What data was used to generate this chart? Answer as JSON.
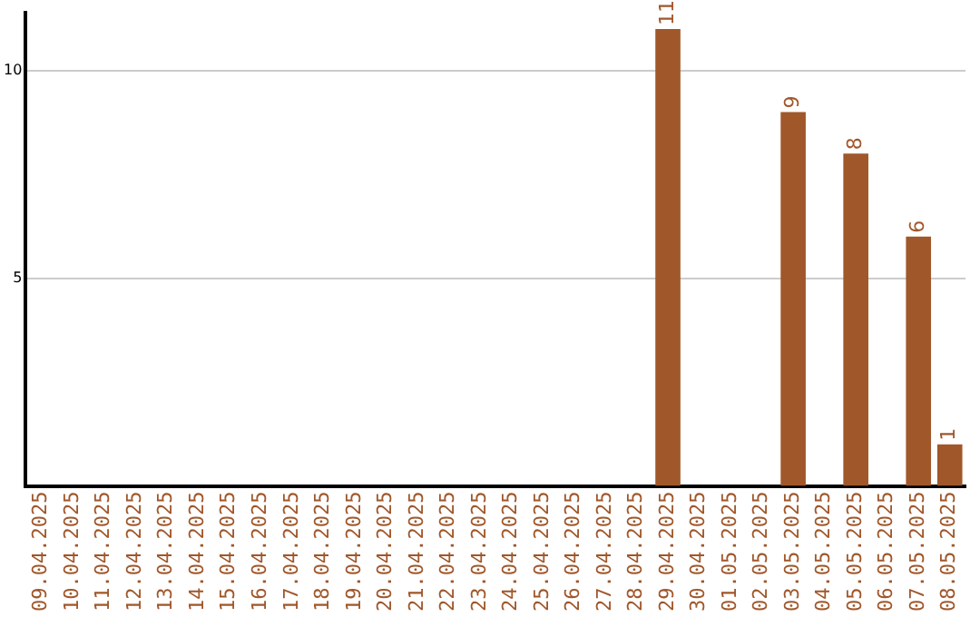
{
  "chart_data": {
    "type": "bar",
    "categories": [
      "09.04.2025",
      "10.04.2025",
      "11.04.2025",
      "12.04.2025",
      "13.04.2025",
      "14.04.2025",
      "15.04.2025",
      "16.04.2025",
      "17.04.2025",
      "18.04.2025",
      "19.04.2025",
      "20.04.2025",
      "21.04.2025",
      "22.04.2025",
      "23.04.2025",
      "24.04.2025",
      "25.04.2025",
      "26.04.2025",
      "27.04.2025",
      "28.04.2025",
      "29.04.2025",
      "30.04.2025",
      "01.05.2025",
      "02.05.2025",
      "03.05.2025",
      "04.05.2025",
      "05.05.2025",
      "06.05.2025",
      "07.05.2025",
      "08.05.2025"
    ],
    "values": [
      0,
      0,
      0,
      0,
      0,
      0,
      0,
      0,
      0,
      0,
      0,
      0,
      0,
      0,
      0,
      0,
      0,
      0,
      0,
      0,
      11,
      0,
      0,
      0,
      9,
      0,
      8,
      0,
      6,
      1
    ],
    "value_labels": [
      null,
      null,
      null,
      null,
      null,
      null,
      null,
      null,
      null,
      null,
      null,
      null,
      null,
      null,
      null,
      null,
      null,
      null,
      null,
      null,
      "11",
      null,
      null,
      null,
      "9",
      null,
      "8",
      null,
      "6",
      "1"
    ],
    "color": "#a0572a",
    "ylim": [
      0,
      11.4
    ],
    "yticks": [
      5,
      10
    ],
    "grid": "y"
  }
}
